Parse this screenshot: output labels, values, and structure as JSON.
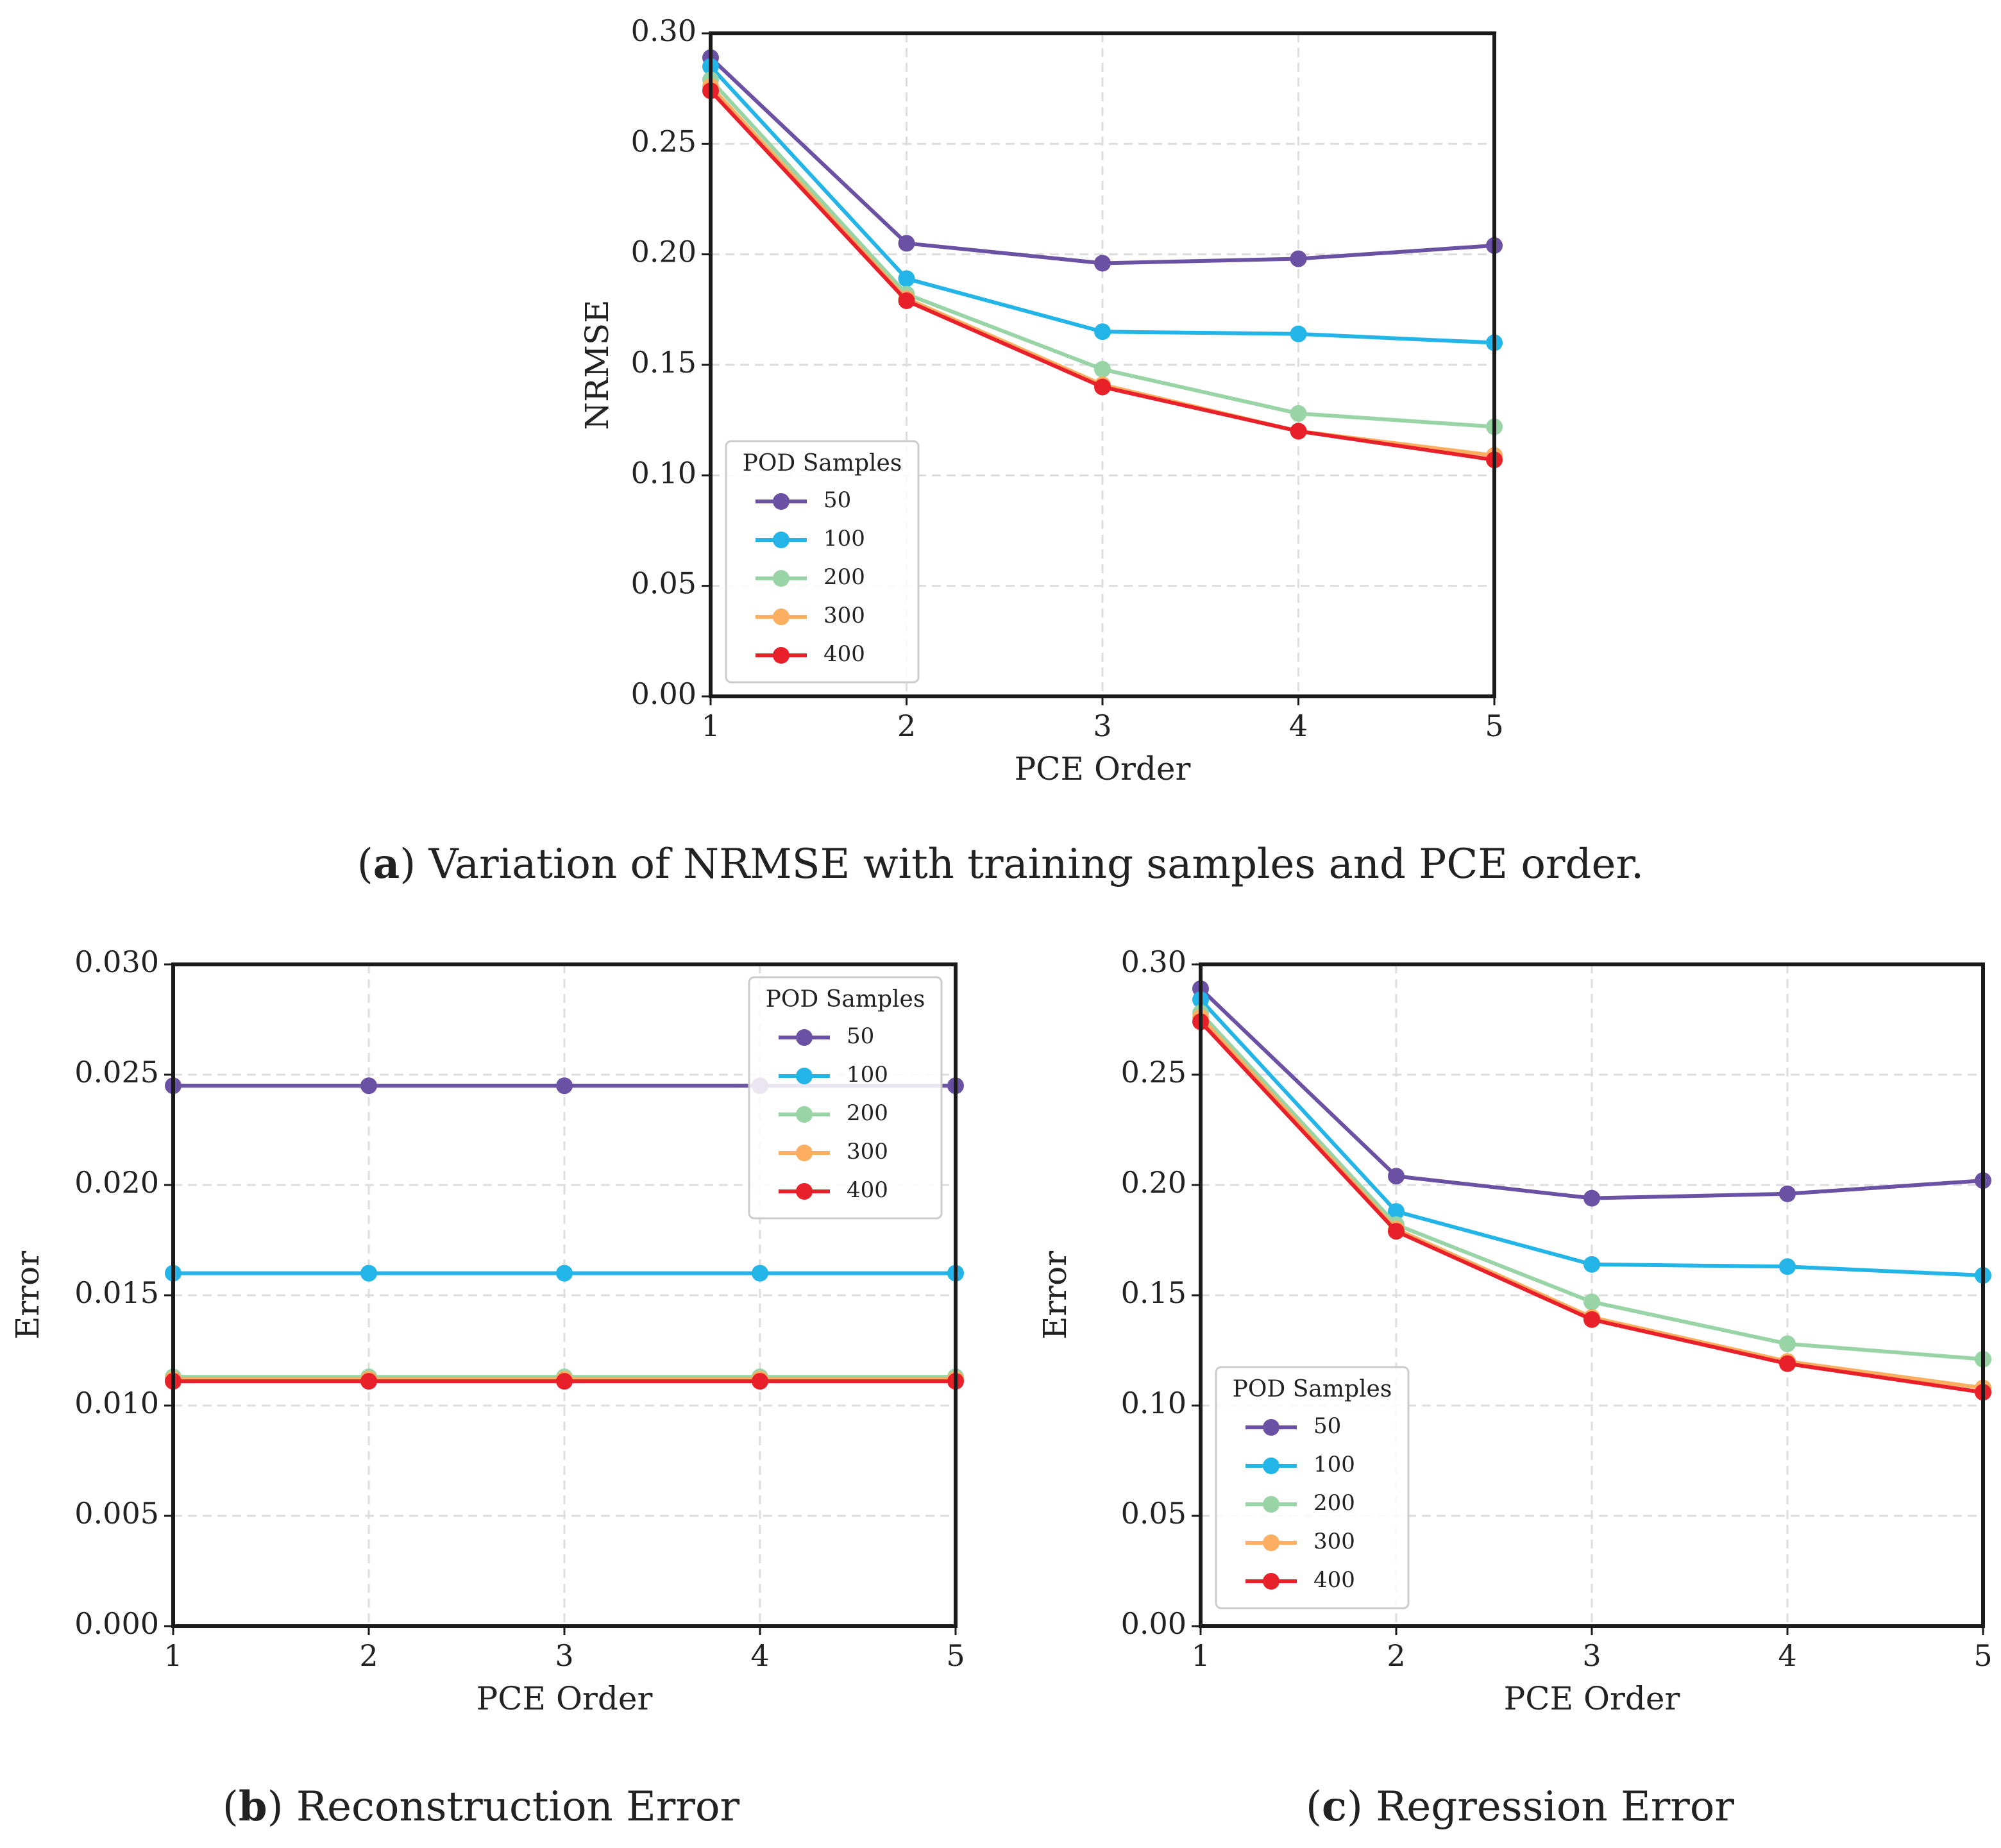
{
  "colors": {
    "series_50": "#6a51a3",
    "series_100": "#23b4e8",
    "series_200": "#98d4a6",
    "series_300": "#fdae61",
    "series_400": "#e8202a",
    "grid": "#dddddd",
    "frame": "#1a1a1a"
  },
  "captions": {
    "a": {
      "tag": "a",
      "text": "Variation of NRMSE with training samples and PCE order."
    },
    "b": {
      "tag": "b",
      "text": "Reconstruction Error"
    },
    "c": {
      "tag": "c",
      "text": "Regression Error"
    }
  },
  "chart_data": [
    {
      "id": "a",
      "type": "line",
      "xlabel": "PCE Order",
      "ylabel": "NRMSE",
      "x": [
        1,
        2,
        3,
        4,
        5
      ],
      "xticks": [
        "1",
        "2",
        "3",
        "4",
        "5"
      ],
      "xlim": [
        1,
        5
      ],
      "ylim": [
        0,
        0.3
      ],
      "yticks": [
        "0.00",
        "0.05",
        "0.10",
        "0.15",
        "0.20",
        "0.25",
        "0.30"
      ],
      "ytick_values": [
        0,
        0.05,
        0.1,
        0.15,
        0.2,
        0.25,
        0.3
      ],
      "grid": true,
      "legend": {
        "title": "POD Samples",
        "placement": "lower-left"
      },
      "series": [
        {
          "name": "50",
          "color_key": "series_50",
          "values": [
            0.289,
            0.205,
            0.196,
            0.198,
            0.204
          ]
        },
        {
          "name": "100",
          "color_key": "series_100",
          "values": [
            0.285,
            0.189,
            0.165,
            0.164,
            0.16
          ]
        },
        {
          "name": "200",
          "color_key": "series_200",
          "values": [
            0.279,
            0.182,
            0.148,
            0.128,
            0.122
          ]
        },
        {
          "name": "300",
          "color_key": "series_300",
          "values": [
            0.276,
            0.18,
            0.141,
            0.12,
            0.109
          ]
        },
        {
          "name": "400",
          "color_key": "series_400",
          "values": [
            0.274,
            0.179,
            0.14,
            0.12,
            0.107
          ]
        }
      ]
    },
    {
      "id": "b",
      "type": "line",
      "xlabel": "PCE Order",
      "ylabel": "Error",
      "x": [
        1,
        2,
        3,
        4,
        5
      ],
      "xticks": [
        "1",
        "2",
        "3",
        "4",
        "5"
      ],
      "xlim": [
        1,
        5
      ],
      "ylim": [
        0,
        0.03
      ],
      "yticks": [
        "0.000",
        "0.005",
        "0.010",
        "0.015",
        "0.020",
        "0.025",
        "0.030"
      ],
      "ytick_values": [
        0,
        0.005,
        0.01,
        0.015,
        0.02,
        0.025,
        0.03
      ],
      "grid": true,
      "legend": {
        "title": "POD Samples",
        "placement": "upper-right"
      },
      "series": [
        {
          "name": "50",
          "color_key": "series_50",
          "values": [
            0.0245,
            0.0245,
            0.0245,
            0.0245,
            0.0245
          ]
        },
        {
          "name": "100",
          "color_key": "series_100",
          "values": [
            0.016,
            0.016,
            0.016,
            0.016,
            0.016
          ]
        },
        {
          "name": "200",
          "color_key": "series_200",
          "values": [
            0.0113,
            0.0113,
            0.0113,
            0.0113,
            0.0113
          ]
        },
        {
          "name": "300",
          "color_key": "series_300",
          "values": [
            0.0112,
            0.0112,
            0.0112,
            0.0112,
            0.0112
          ]
        },
        {
          "name": "400",
          "color_key": "series_400",
          "values": [
            0.0111,
            0.0111,
            0.0111,
            0.0111,
            0.0111
          ]
        }
      ]
    },
    {
      "id": "c",
      "type": "line",
      "xlabel": "PCE Order",
      "ylabel": "Error",
      "x": [
        1,
        2,
        3,
        4,
        5
      ],
      "xticks": [
        "1",
        "2",
        "3",
        "4",
        "5"
      ],
      "xlim": [
        1,
        5
      ],
      "ylim": [
        0,
        0.3
      ],
      "yticks": [
        "0.00",
        "0.05",
        "0.10",
        "0.15",
        "0.20",
        "0.25",
        "0.30"
      ],
      "ytick_values": [
        0,
        0.05,
        0.1,
        0.15,
        0.2,
        0.25,
        0.3
      ],
      "grid": true,
      "legend": {
        "title": "POD Samples",
        "placement": "lower-left"
      },
      "series": [
        {
          "name": "50",
          "color_key": "series_50",
          "values": [
            0.289,
            0.204,
            0.194,
            0.196,
            0.202
          ]
        },
        {
          "name": "100",
          "color_key": "series_100",
          "values": [
            0.284,
            0.188,
            0.164,
            0.163,
            0.159
          ]
        },
        {
          "name": "200",
          "color_key": "series_200",
          "values": [
            0.278,
            0.182,
            0.147,
            0.128,
            0.121
          ]
        },
        {
          "name": "300",
          "color_key": "series_300",
          "values": [
            0.276,
            0.18,
            0.14,
            0.12,
            0.108
          ]
        },
        {
          "name": "400",
          "color_key": "series_400",
          "values": [
            0.274,
            0.179,
            0.139,
            0.119,
            0.106
          ]
        }
      ]
    }
  ]
}
